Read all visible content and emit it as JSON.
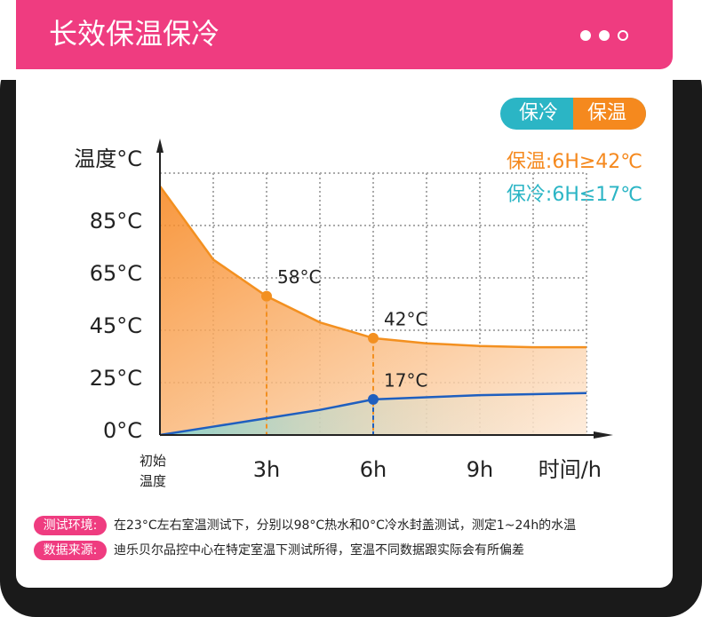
{
  "header": {
    "title": "长效保温保冷"
  },
  "toggle": [
    "保冷",
    "保温"
  ],
  "chart_data": {
    "type": "line",
    "ylabel": "温度°C",
    "xlabel": "时间/h",
    "legend": [
      "保温:6H≥42℃",
      "保冷:6H≤17℃"
    ],
    "xlim": [
      0,
      12.75
    ],
    "ylim": [
      0,
      105
    ],
    "xticks": [
      {
        "value": 0,
        "label": "初始温度"
      },
      {
        "value": 3,
        "label": "3h"
      },
      {
        "value": 6,
        "label": "6h"
      },
      {
        "value": 9,
        "label": "9h"
      }
    ],
    "xgrid_step": 1.5,
    "yticks": [
      {
        "value": 0,
        "label": "0°C"
      },
      {
        "value": 25,
        "label": "25°C"
      },
      {
        "value": 45,
        "label": "45°C"
      },
      {
        "value": 65,
        "label": "65°C"
      },
      {
        "value": 85,
        "label": "85°C"
      }
    ],
    "grid": true,
    "series": [
      {
        "name": "保温",
        "color": "#f39020",
        "x": [
          0,
          1.5,
          3,
          4.5,
          6,
          7.5,
          9,
          10.5,
          12
        ],
        "values": [
          100,
          72,
          58,
          48,
          42,
          40,
          39,
          38.5,
          38.5
        ],
        "value_labels": [
          null,
          null,
          "58°C",
          null,
          "42°C",
          null,
          null,
          null,
          null
        ]
      },
      {
        "name": "保冷",
        "color": "#1f5fbf",
        "x": [
          0,
          1.5,
          3,
          4.5,
          6,
          7.5,
          9,
          10.5,
          12
        ],
        "values": [
          0,
          4,
          8,
          12,
          17,
          18,
          19,
          19.5,
          20
        ],
        "value_labels": [
          null,
          null,
          null,
          null,
          "17°C",
          null,
          null,
          null,
          null
        ]
      }
    ]
  },
  "notes": [
    {
      "tag": "测试环境:",
      "text": "在23°C左右室温测试下，分别以98°C热水和0°C冷水封盖测试，测定1~24h的水温"
    },
    {
      "tag": "数据来源:",
      "text": "迪乐贝尔品控中心在特定室温下测试所得，室温不同数据跟实际会有所偏差"
    }
  ]
}
